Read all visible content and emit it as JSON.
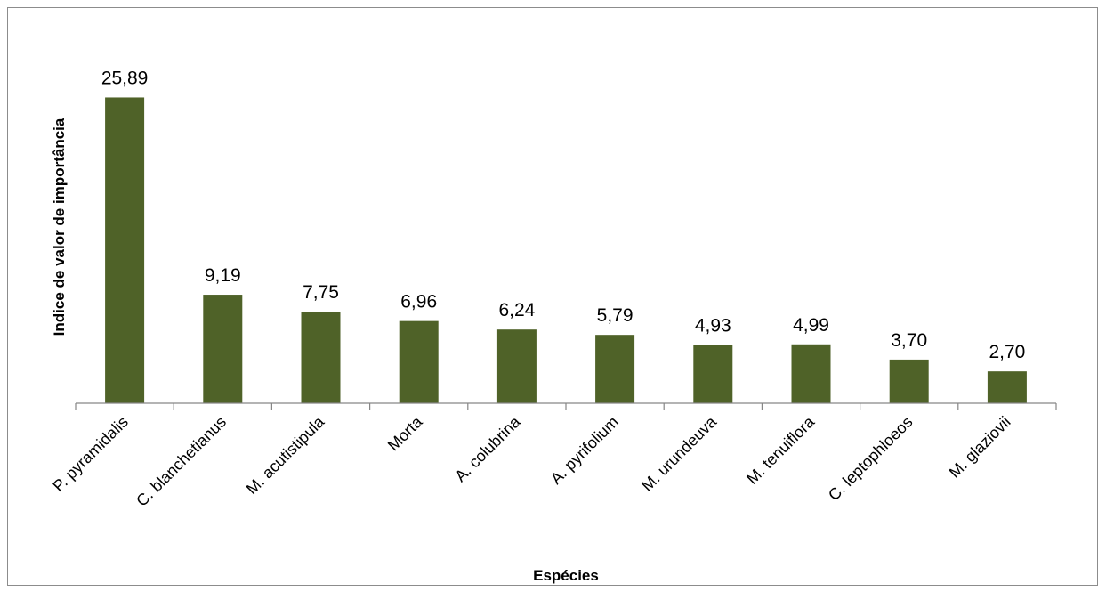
{
  "chart_data": {
    "type": "bar",
    "categories": [
      "P. pyramidalis",
      "C. blanchetianus",
      "M. acutistipula",
      "Morta",
      "A. colubrina",
      "A. pyrifolium",
      "M. urundeuva",
      "M. tenuiflora",
      "C. leptophloeos",
      "M. glaziovii"
    ],
    "values": [
      25.89,
      9.19,
      7.75,
      6.96,
      6.24,
      5.79,
      4.93,
      4.99,
      3.7,
      2.7
    ],
    "data_labels": [
      "25,89",
      "9,19",
      "7,75",
      "6,96",
      "6,24",
      "5,79",
      "4,93",
      "4,99",
      "3,70",
      "2,70"
    ],
    "title": "",
    "xlabel": "Espécies",
    "ylabel": "Indice de valor de importância",
    "ylim": [
      0,
      26
    ],
    "grid": false,
    "legend": "none",
    "bar_color": "#4f6228",
    "axis_color": "#868686"
  }
}
